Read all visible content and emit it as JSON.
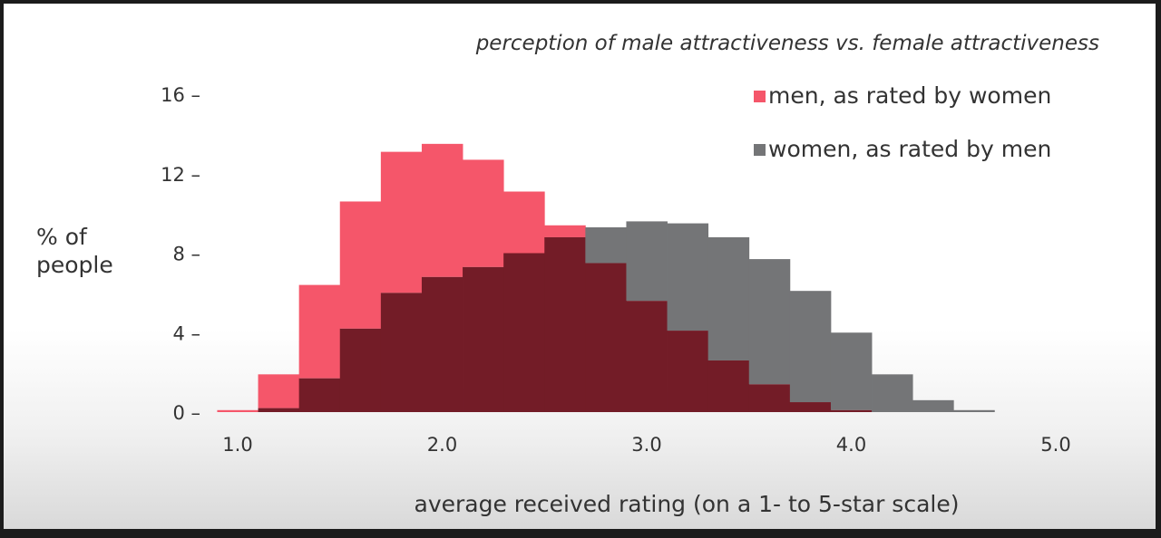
{
  "chart_data": {
    "type": "bar",
    "title": "perception of male attractiveness vs. female attractiveness",
    "xlabel": "average received rating (on a 1- to 5-star scale)",
    "ylabel_lines": [
      "% of",
      "people"
    ],
    "xlim": [
      1.0,
      5.0
    ],
    "ylim": [
      0,
      16
    ],
    "x_ticks": [
      {
        "value": 1.0,
        "label": "1.0"
      },
      {
        "value": 2.0,
        "label": "2.0"
      },
      {
        "value": 3.0,
        "label": "3.0"
      },
      {
        "value": 4.0,
        "label": "4.0"
      },
      {
        "value": 5.0,
        "label": "5.0"
      }
    ],
    "y_ticks": [
      {
        "value": 0,
        "label": "0 –"
      },
      {
        "value": 4,
        "label": "4 –"
      },
      {
        "value": 8,
        "label": "8 –"
      },
      {
        "value": 12,
        "label": "12 –"
      },
      {
        "value": 16,
        "label": "16 –"
      }
    ],
    "bin_width": 0.2,
    "bin_starts": [
      0.9,
      1.1,
      1.3,
      1.5,
      1.7,
      1.9,
      2.1,
      2.3,
      2.5,
      2.7,
      2.9,
      3.1,
      3.3,
      3.5,
      3.7,
      3.9,
      4.1,
      4.3,
      4.5,
      4.7
    ],
    "series": [
      {
        "name": "men, as rated by women",
        "color": "#f5566a",
        "values": [
          0.1,
          1.9,
          6.4,
          10.6,
          13.1,
          13.5,
          12.7,
          11.1,
          9.4,
          7.5,
          5.6,
          4.1,
          2.6,
          1.4,
          0.5,
          0.1,
          0,
          0,
          0,
          0
        ]
      },
      {
        "name": "women, as rated by men",
        "color": "#747577",
        "values": [
          0,
          0.2,
          1.7,
          4.2,
          6.0,
          6.8,
          7.3,
          8.0,
          8.8,
          9.3,
          9.6,
          9.5,
          8.8,
          7.7,
          6.1,
          4.0,
          1.9,
          0.6,
          0.1,
          0
        ]
      }
    ],
    "overlap_color": "#731c27",
    "legend": {
      "position": "top-right"
    },
    "grid": false
  }
}
